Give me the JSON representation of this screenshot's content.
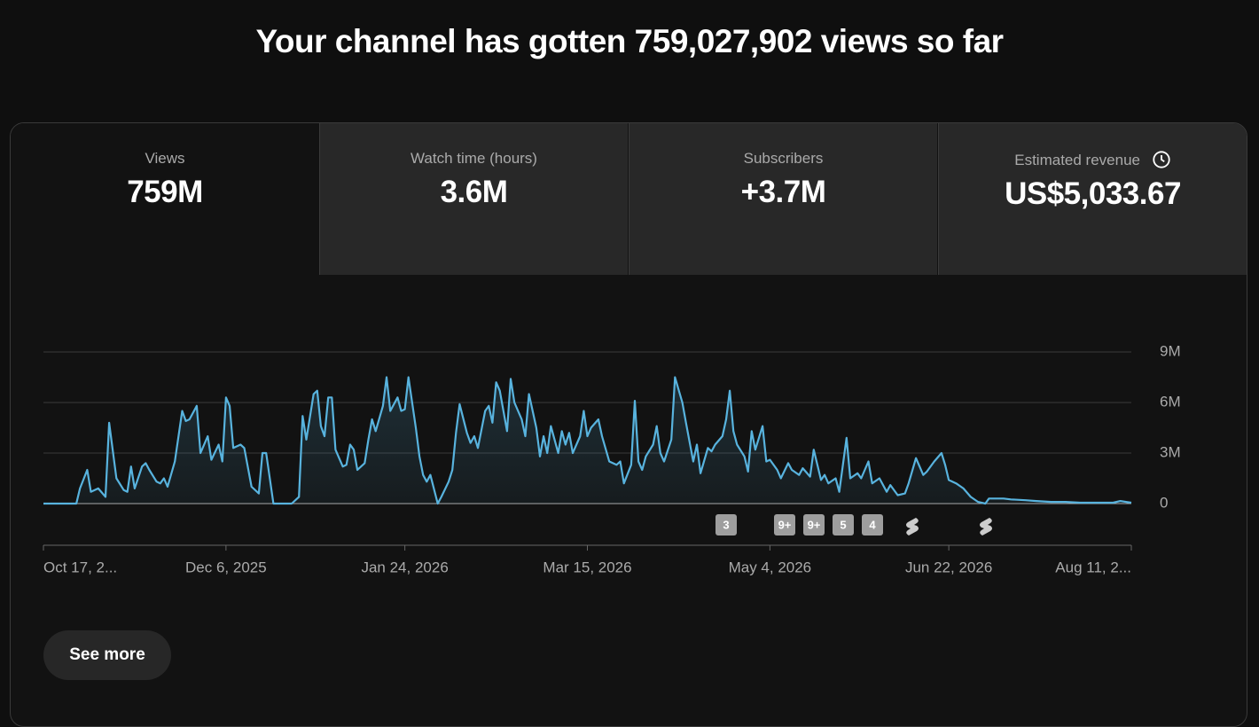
{
  "header": {
    "title": "Your channel has gotten 759,027,902 views so far"
  },
  "tabs": [
    {
      "label": "Views",
      "value": "759M"
    },
    {
      "label": "Watch time (hours)",
      "value": "3.6M"
    },
    {
      "label": "Subscribers",
      "value": "+3.7M"
    },
    {
      "label": "Estimated revenue",
      "value": "US$5,033.67"
    }
  ],
  "chart_data": {
    "type": "area",
    "x": [
      0,
      9,
      10,
      12,
      13,
      15,
      17,
      18,
      20,
      22,
      23,
      24,
      25,
      27,
      28,
      29,
      31,
      32,
      33,
      34,
      36,
      38,
      39,
      40,
      42,
      43,
      45,
      46,
      48,
      49,
      50,
      51,
      52,
      54,
      55,
      57,
      59,
      60,
      61,
      63,
      68,
      70,
      71,
      72,
      74,
      75,
      76,
      77,
      78,
      79,
      80,
      82,
      83,
      84,
      85,
      86,
      88,
      89,
      90,
      91,
      93,
      94,
      95,
      97,
      98,
      99,
      100,
      102,
      103,
      104,
      105,
      106,
      108,
      109,
      111,
      112,
      113,
      114,
      116,
      117,
      118,
      119,
      121,
      122,
      123,
      124,
      125,
      127,
      128,
      129,
      131,
      132,
      133,
      135,
      136,
      137,
      138,
      139,
      141,
      142,
      143,
      144,
      145,
      147,
      148,
      149,
      150,
      152,
      153,
      155,
      157,
      158,
      159,
      161,
      162,
      163,
      164,
      165,
      167,
      168,
      169,
      170,
      172,
      173,
      175,
      176,
      178,
      179,
      180,
      182,
      183,
      184,
      186,
      187,
      188,
      189,
      190,
      192,
      193,
      194,
      195,
      197,
      198,
      199,
      201,
      202,
      204,
      205,
      207,
      208,
      210,
      211,
      213,
      214,
      215,
      217,
      218,
      220,
      221,
      223,
      224,
      226,
      227,
      229,
      231,
      232,
      234,
      236,
      237,
      239,
      241,
      242,
      244,
      246,
      247,
      248,
      250,
      252,
      254,
      256,
      258,
      259,
      263,
      265,
      269,
      272,
      276,
      280,
      284,
      289,
      293,
      295,
      298
    ],
    "series": [
      {
        "color": "#58b3de",
        "values": [
          0,
          0,
          0.9,
          2.0,
          0.7,
          0.9,
          0.4,
          4.8,
          1.5,
          0.8,
          0.7,
          2.2,
          0.9,
          2.2,
          2.4,
          2.0,
          1.3,
          1.2,
          1.5,
          1.0,
          2.5,
          5.5,
          4.9,
          5.0,
          5.8,
          3.0,
          4.0,
          2.6,
          3.5,
          2.5,
          6.3,
          5.8,
          3.3,
          3.5,
          3.3,
          1.0,
          0.6,
          3.0,
          3.0,
          0,
          0,
          0.4,
          5.2,
          3.8,
          6.5,
          6.7,
          4.6,
          4.0,
          6.3,
          6.3,
          3.2,
          2.2,
          2.3,
          3.5,
          3.2,
          2.0,
          2.4,
          3.8,
          5.0,
          4.3,
          5.8,
          7.5,
          5.5,
          6.3,
          5.5,
          5.6,
          7.5,
          4.5,
          2.8,
          1.7,
          1.3,
          1.7,
          0,
          0.4,
          1.3,
          2.0,
          4.2,
          5.9,
          4.2,
          3.6,
          4.0,
          3.3,
          5.5,
          5.8,
          4.8,
          7.2,
          6.7,
          4.3,
          7.4,
          6.0,
          5.0,
          4.0,
          6.5,
          4.5,
          2.8,
          4.0,
          3.0,
          4.6,
          3.0,
          4.3,
          3.5,
          4.2,
          3.0,
          4.0,
          5.5,
          4.0,
          4.5,
          5.0,
          4.0,
          2.5,
          2.3,
          2.5,
          1.2,
          2.3,
          6.1,
          2.5,
          2.0,
          2.8,
          3.5,
          4.6,
          3.0,
          2.5,
          3.8,
          7.5,
          6.0,
          4.8,
          2.5,
          3.5,
          1.8,
          3.3,
          3.1,
          3.5,
          4.0,
          5.0,
          6.7,
          4.3,
          3.5,
          2.8,
          1.9,
          4.3,
          3.2,
          4.6,
          2.5,
          2.6,
          2.0,
          1.5,
          2.4,
          2.0,
          1.7,
          2.1,
          1.6,
          3.2,
          1.4,
          1.7,
          1.2,
          1.5,
          0.7,
          3.9,
          1.5,
          1.8,
          1.5,
          2.5,
          1.2,
          1.5,
          0.7,
          1.1,
          0.5,
          0.6,
          1.2,
          2.7,
          1.7,
          1.9,
          2.5,
          3.0,
          2.3,
          1.4,
          1.2,
          0.9,
          0.4,
          0.1,
          0,
          0.3,
          0.3,
          0.25,
          0.2,
          0.15,
          0.1,
          0.1,
          0.05,
          0.05,
          0.05,
          0.15,
          0.05
        ]
      }
    ],
    "xlim": [
      0,
      298
    ],
    "xticks": [
      {
        "value": 0,
        "label": "Oct 17, 2..."
      },
      {
        "value": 50,
        "label": "Dec 6, 2025"
      },
      {
        "value": 99,
        "label": "Jan 24, 2026"
      },
      {
        "value": 149,
        "label": "Mar 15, 2026"
      },
      {
        "value": 199,
        "label": "May 4, 2026"
      },
      {
        "value": 248,
        "label": "Jun 22, 2026"
      },
      {
        "value": 298,
        "label": "Aug 11, 2..."
      }
    ],
    "ylim": [
      0,
      9
    ],
    "yticks": [
      {
        "value": 0,
        "label": "0"
      },
      {
        "value": 3,
        "label": "3M"
      },
      {
        "value": 6,
        "label": "6M"
      },
      {
        "value": 9,
        "label": "9M"
      }
    ],
    "grid": true,
    "annotations": [
      "3",
      "9+",
      "9+",
      "5",
      "4"
    ]
  },
  "button": "See more"
}
